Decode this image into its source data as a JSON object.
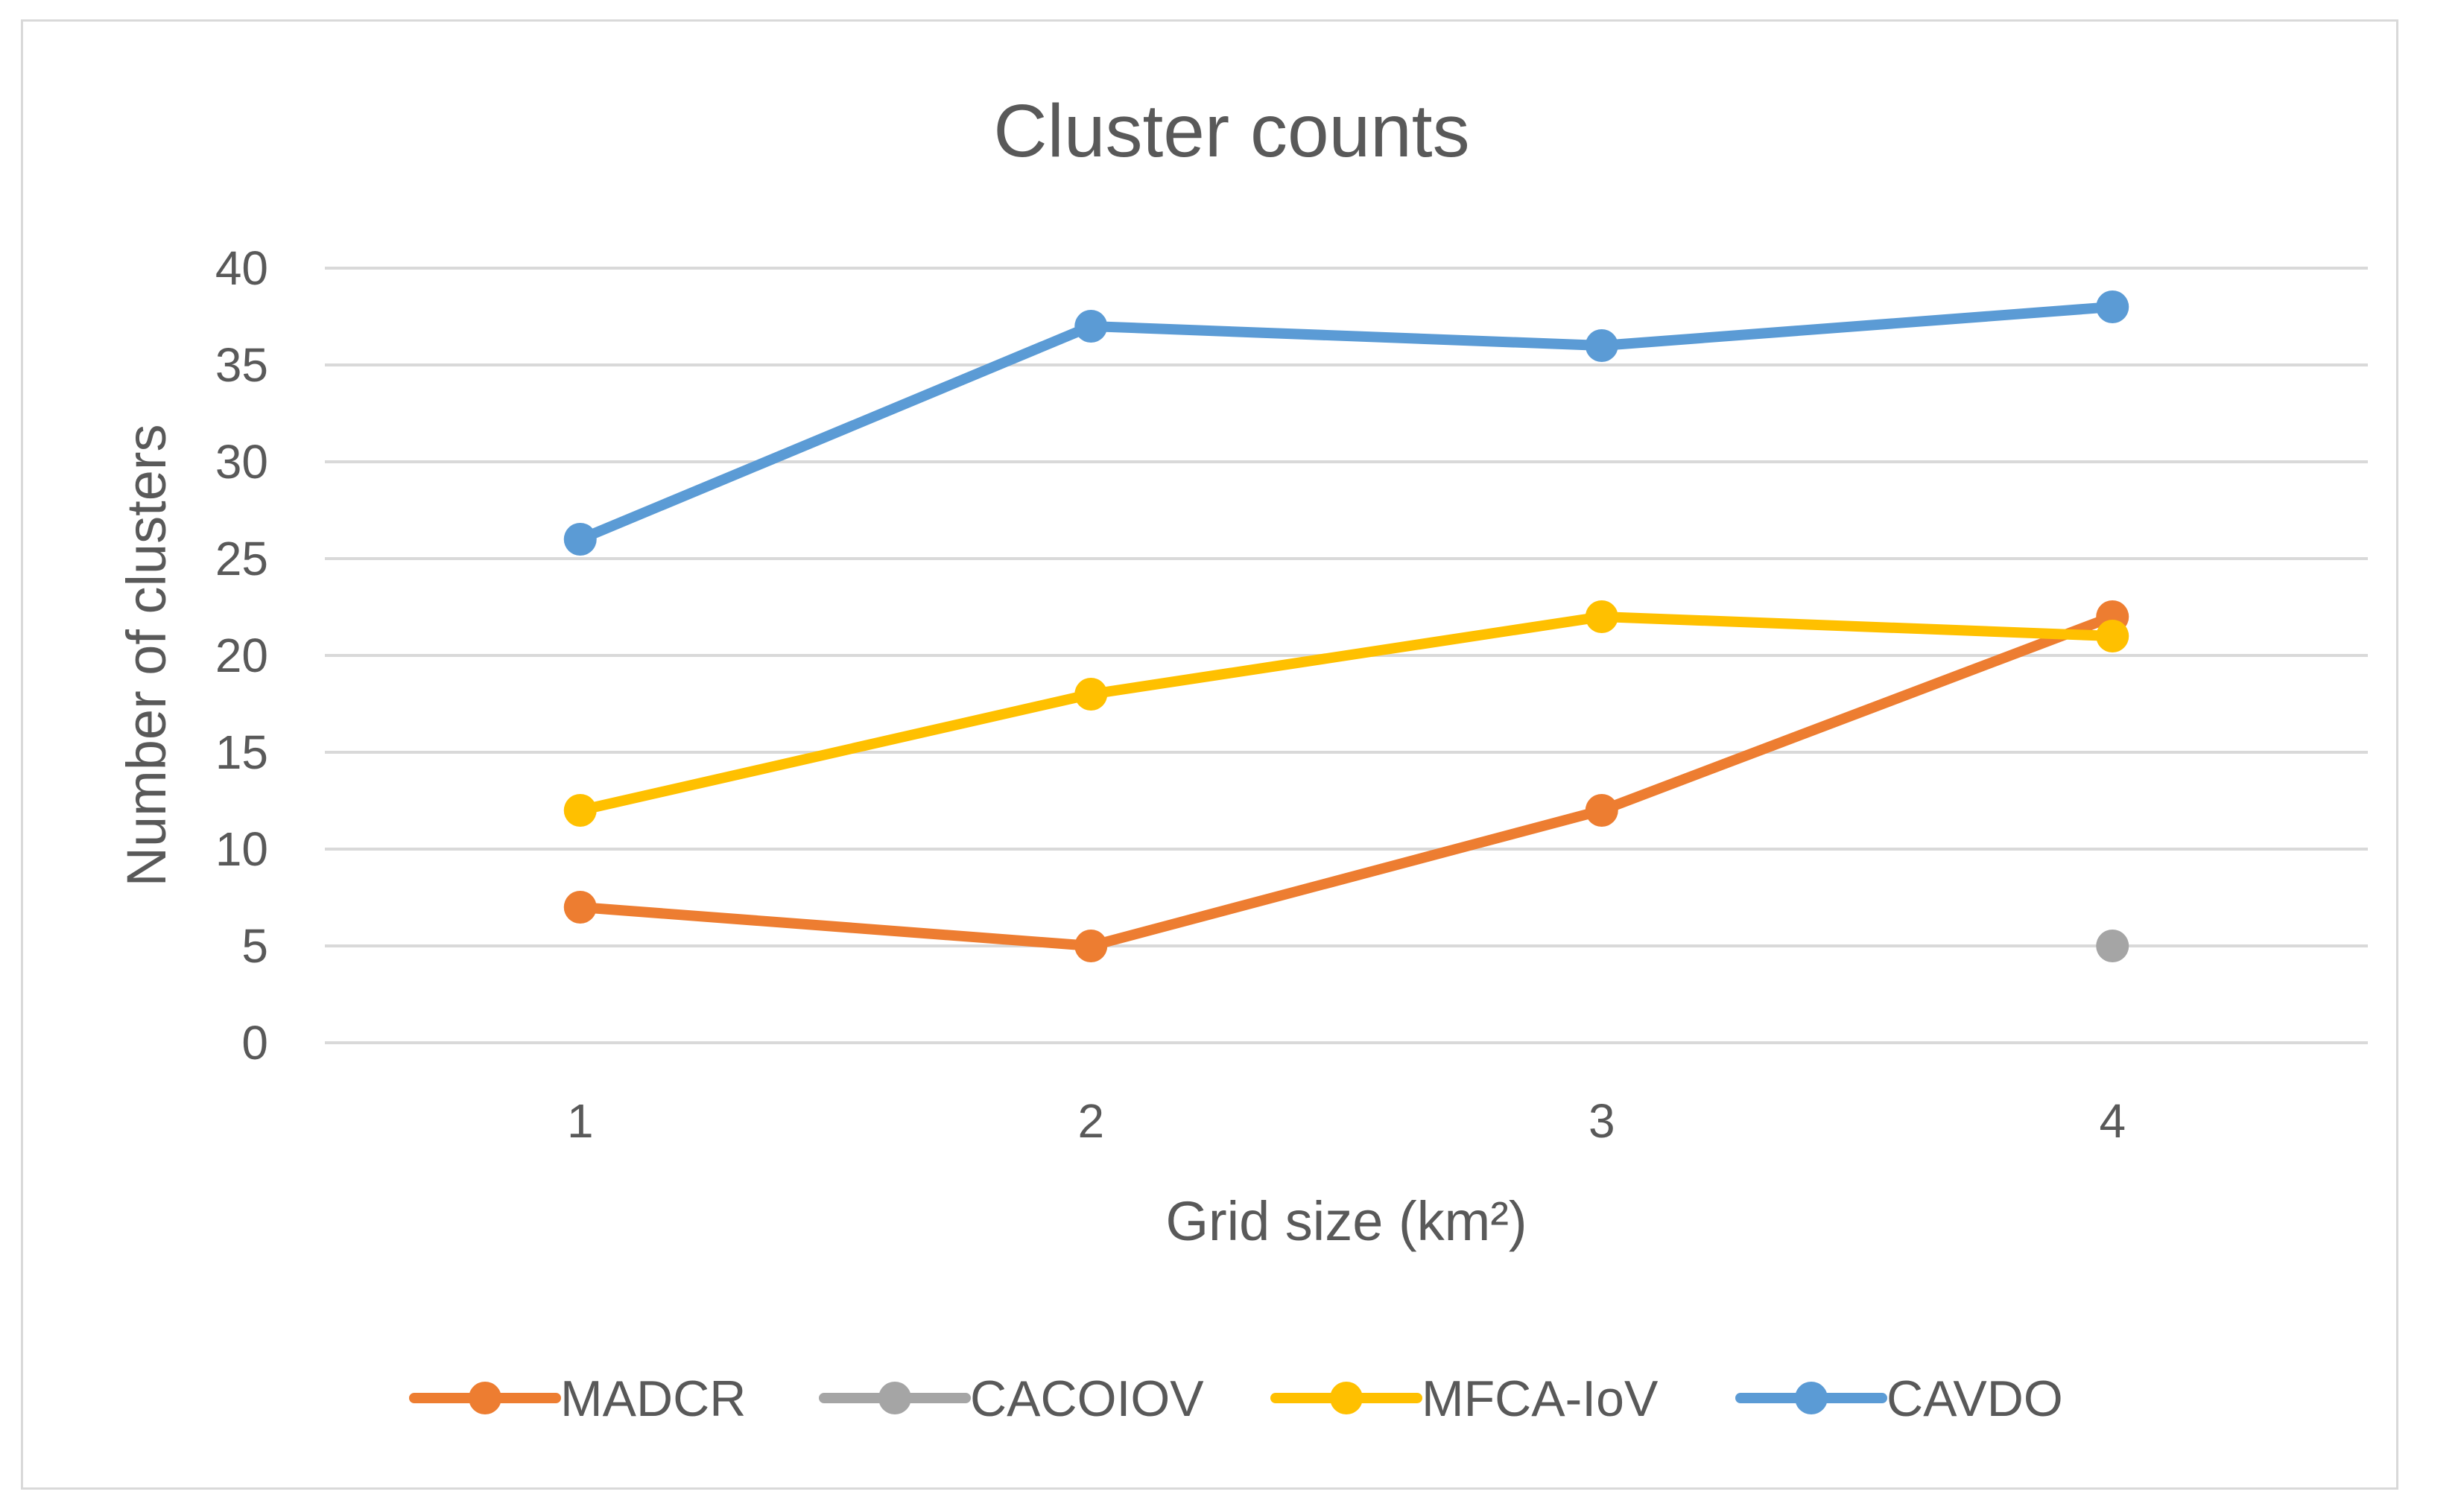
{
  "chart_data": {
    "type": "line",
    "title": "Cluster counts",
    "xlabel": "Grid size (km²)",
    "ylabel": "Number of clusters",
    "categories": [
      "1",
      "2",
      "3",
      "4"
    ],
    "ylim": [
      0,
      40
    ],
    "yticks": [
      0,
      5,
      10,
      15,
      20,
      25,
      30,
      35,
      40
    ],
    "grid": true,
    "legend_position": "bottom",
    "series": [
      {
        "name": "MADCR",
        "color": "#ED7D31",
        "values": [
          7,
          5,
          12,
          22
        ]
      },
      {
        "name": "CACOIOV",
        "color": "#A5A5A5",
        "values": [
          null,
          null,
          null,
          5
        ]
      },
      {
        "name": "MFCA-IoV",
        "color": "#FFC000",
        "values": [
          12,
          18,
          22,
          21
        ]
      },
      {
        "name": "CAVDO",
        "color": "#5B9BD5",
        "values": [
          26,
          37,
          36,
          38
        ]
      }
    ]
  },
  "colors": {
    "gridline": "#d9d9d9",
    "text": "#595959",
    "frame": "#d9d9d9"
  }
}
